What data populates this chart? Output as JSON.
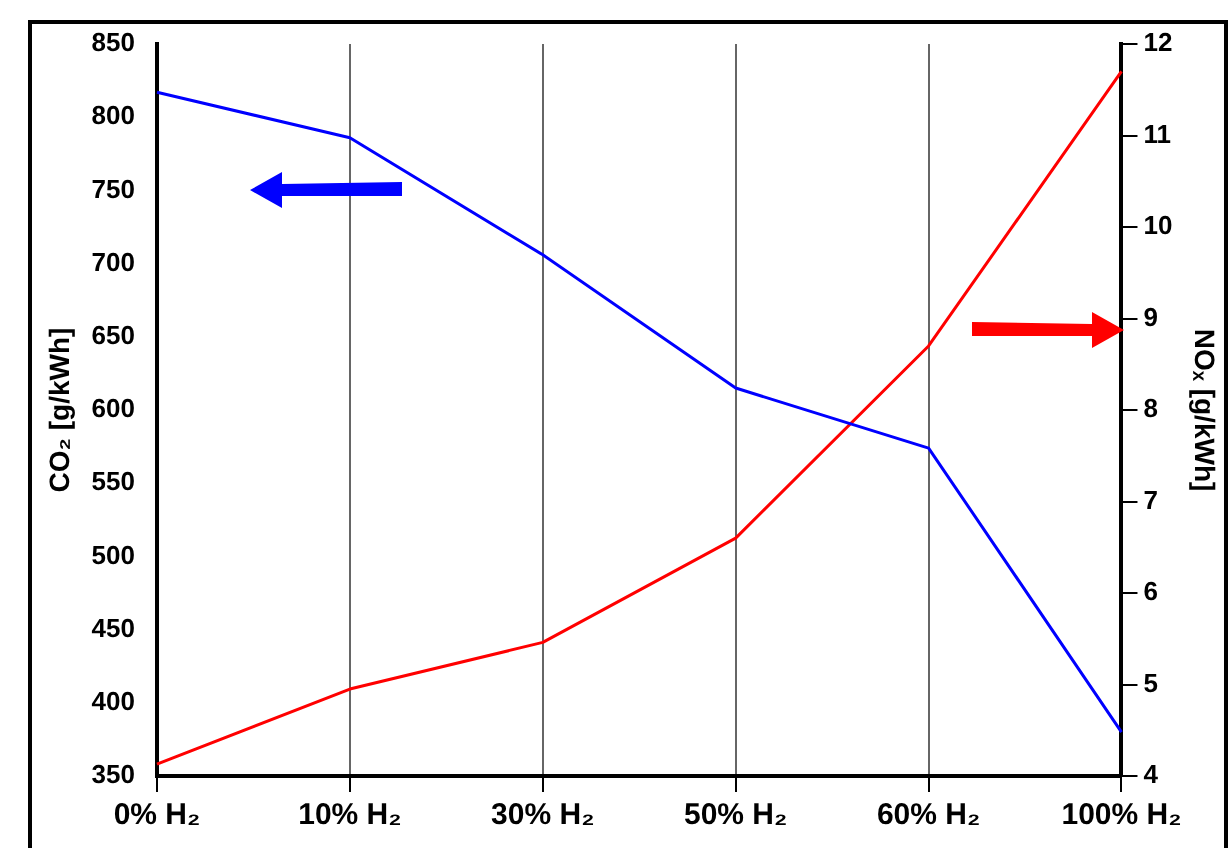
{
  "chart_data": {
    "type": "line",
    "categories": [
      "0% H₂",
      "10% H₂",
      "30% H₂",
      "50% H₂",
      "60% H₂",
      "100% H₂"
    ],
    "ylabel": "CO₂ [g/kWh]",
    "y2label": "NOₓ [g/kWh]",
    "series": [
      {
        "color": "#0000ff",
        "values": [
          817,
          786,
          706,
          615,
          574,
          380
        ]
      },
      {
        "color": "#ff0000",
        "axis": "y2",
        "values": [
          4.13,
          4.95,
          5.46,
          6.6,
          8.7,
          11.7
        ]
      }
    ],
    "ylim": [
      350,
      850
    ],
    "yticks": [
      350,
      400,
      450,
      500,
      550,
      600,
      650,
      700,
      750,
      800,
      850
    ],
    "y2lim": [
      4,
      12
    ],
    "y2ticks": [
      4,
      5,
      6,
      7,
      8,
      9,
      10,
      11,
      12
    ],
    "grid": "x",
    "legend": false,
    "marker": "none",
    "line_style": "solid"
  }
}
